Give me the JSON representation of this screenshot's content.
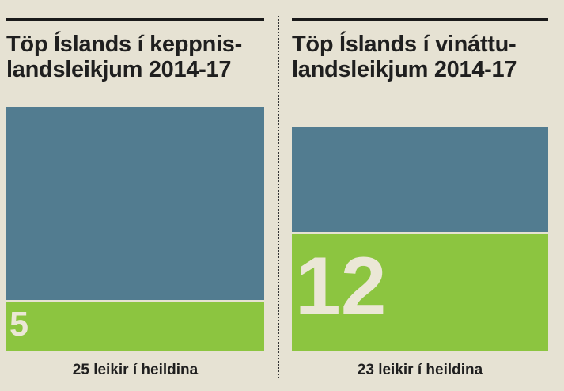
{
  "panels": [
    {
      "title_lines": [
        "Töp Íslands í keppnis-",
        "landsleikjum 2014-17"
      ],
      "footer": "25 leikir í heildina"
    },
    {
      "title_lines": [
        "Töp Íslands í vináttu-",
        "landsleikjum 2014-17"
      ],
      "footer": "23 leikir í heildina"
    }
  ],
  "chart_data": [
    {
      "type": "bar",
      "title": "Töp Íslands í keppnislandsleikjum 2014-17",
      "total_games": 25,
      "losses": 5,
      "loss_label": "5",
      "caption": "25 leikir í heildina"
    },
    {
      "type": "bar",
      "title": "Töp Íslands í vináttulandsleikjum 2014-17",
      "total_games": 23,
      "losses": 12,
      "loss_label": "12",
      "caption": "23 leikir í heildina"
    }
  ],
  "colors": {
    "background": "#e6e2d3",
    "total_bar": "#527c90",
    "loss_bar": "#8cc540",
    "loss_text": "#ebe7d6",
    "title_text": "#1f1f1f"
  }
}
